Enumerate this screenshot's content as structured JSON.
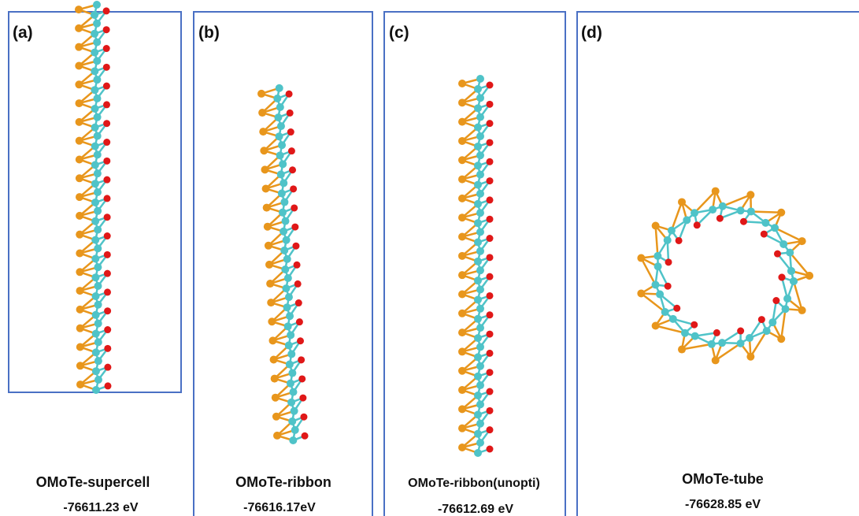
{
  "panels": [
    {
      "label": "(a)",
      "name": "OMoTe-supercell",
      "energy": "-76611.23 eV"
    },
    {
      "label": "(b)",
      "name": "OMoTe-ribbon",
      "energy": "-76616.17eV"
    },
    {
      "label": "(c)",
      "name": "OMoTe-ribbon(unopti)",
      "energy": "-76612.69 eV"
    },
    {
      "label": "(d)",
      "name": "OMoTe-tube",
      "energy": "-76628.85 eV"
    }
  ]
}
